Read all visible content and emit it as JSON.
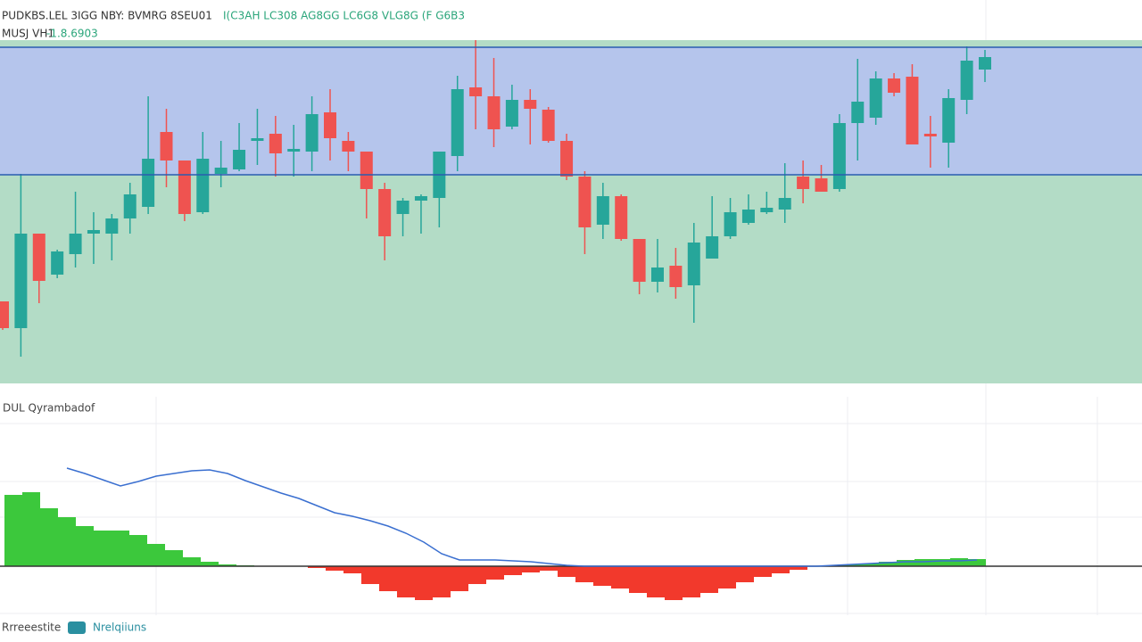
{
  "header": {
    "line1": "PUDKBS.LEL 3IGG NBY: BVMRG 8SEU01",
    "line1_values": "I(C3AH LC308 AG8GG LC6G8 VLG8G (F G6B3",
    "line2": "MUSJ VH1",
    "line2_value": "-1.8.6903"
  },
  "chart_data": [
    {
      "type": "candlestick",
      "ylim": [
        0,
        400
      ],
      "up_color": "#26a69a",
      "down_color": "#ef5350",
      "levels": [
        377,
        234
      ],
      "level_color": "#2a5db0",
      "band_colors": [
        "#b5c5ec",
        "#b3dcc6"
      ],
      "candles": [
        [
          92,
          92,
          60,
          62
        ],
        [
          62,
          235,
          30,
          168
        ],
        [
          168,
          168,
          90,
          115
        ],
        [
          122,
          150,
          118,
          148
        ],
        [
          145,
          215,
          130,
          168
        ],
        [
          168,
          192,
          134,
          172
        ],
        [
          168,
          190,
          138,
          185
        ],
        [
          185,
          225,
          168,
          212
        ],
        [
          198,
          322,
          190,
          252
        ],
        [
          282,
          308,
          220,
          250
        ],
        [
          250,
          250,
          182,
          190
        ],
        [
          192,
          282,
          190,
          252
        ],
        [
          235,
          272,
          220,
          242
        ],
        [
          240,
          292,
          238,
          262
        ],
        [
          272,
          308,
          245,
          275
        ],
        [
          280,
          300,
          232,
          258
        ],
        [
          260,
          290,
          232,
          263
        ],
        [
          260,
          322,
          238,
          302
        ],
        [
          304,
          330,
          250,
          275
        ],
        [
          272,
          282,
          238,
          260
        ],
        [
          260,
          260,
          185,
          218
        ],
        [
          218,
          225,
          138,
          165
        ],
        [
          190,
          208,
          165,
          205
        ],
        [
          205,
          212,
          168,
          210
        ],
        [
          208,
          260,
          175,
          260
        ],
        [
          255,
          345,
          238,
          330
        ],
        [
          332,
          385,
          285,
          322
        ],
        [
          322,
          365,
          265,
          285
        ],
        [
          288,
          335,
          285,
          318
        ],
        [
          318,
          330,
          268,
          308
        ],
        [
          307,
          310,
          270,
          272
        ],
        [
          272,
          280,
          228,
          232
        ],
        [
          232,
          238,
          145,
          175
        ],
        [
          178,
          225,
          162,
          210
        ],
        [
          210,
          212,
          160,
          162
        ],
        [
          162,
          162,
          100,
          114
        ],
        [
          114,
          162,
          102,
          130
        ],
        [
          132,
          152,
          95,
          108
        ],
        [
          110,
          180,
          68,
          158
        ],
        [
          140,
          210,
          140,
          165
        ],
        [
          165,
          208,
          162,
          192
        ],
        [
          180,
          212,
          178,
          195
        ],
        [
          192,
          215,
          190,
          197
        ],
        [
          195,
          247,
          180,
          208
        ],
        [
          232,
          250,
          202,
          218
        ],
        [
          230,
          245,
          215,
          215
        ],
        [
          218,
          302,
          215,
          292
        ],
        [
          292,
          364,
          250,
          316
        ],
        [
          298,
          350,
          290,
          342
        ],
        [
          342,
          348,
          322,
          326
        ],
        [
          344,
          358,
          268,
          268
        ],
        [
          280,
          300,
          242,
          277
        ],
        [
          270,
          330,
          242,
          320
        ],
        [
          318,
          378,
          302,
          362
        ],
        [
          352,
          374,
          338,
          366
        ]
      ]
    },
    {
      "type": "bar",
      "title": "DUL Qyrambadof",
      "ylim": [
        -55,
        190
      ],
      "pos_color": "#3cc83c",
      "neg_color": "#f2392c",
      "values": [
        80,
        83,
        65,
        55,
        45,
        40,
        40,
        35,
        25,
        18,
        10,
        5,
        2,
        1,
        0,
        0,
        0,
        -2,
        -5,
        -8,
        -20,
        -28,
        -35,
        -38,
        -35,
        -28,
        -20,
        -15,
        -10,
        -7,
        -5,
        -12,
        -18,
        -22,
        -25,
        -30,
        -35,
        -38,
        -35,
        -30,
        -25,
        -18,
        -12,
        -8,
        -4,
        0,
        1,
        2,
        3,
        5,
        7,
        8,
        8,
        9,
        8
      ],
      "series": [
        {
          "type": "line",
          "color": "#3a6fd0",
          "values": [
            null,
            null,
            null,
            110,
            104,
            97,
            90,
            95,
            101,
            104,
            107,
            108,
            104,
            96,
            89,
            82,
            76,
            68,
            60,
            56,
            51,
            45,
            37,
            27,
            14,
            7,
            7,
            7,
            6,
            5,
            3,
            1,
            0,
            0,
            0,
            0,
            0,
            0,
            0,
            0,
            0,
            0,
            0,
            0,
            0,
            0,
            1,
            2,
            3,
            4,
            5,
            5,
            6,
            6,
            7
          ]
        }
      ]
    }
  ],
  "footer": {
    "left": "Rrreeestite",
    "right": "Nrelqiiuns"
  }
}
